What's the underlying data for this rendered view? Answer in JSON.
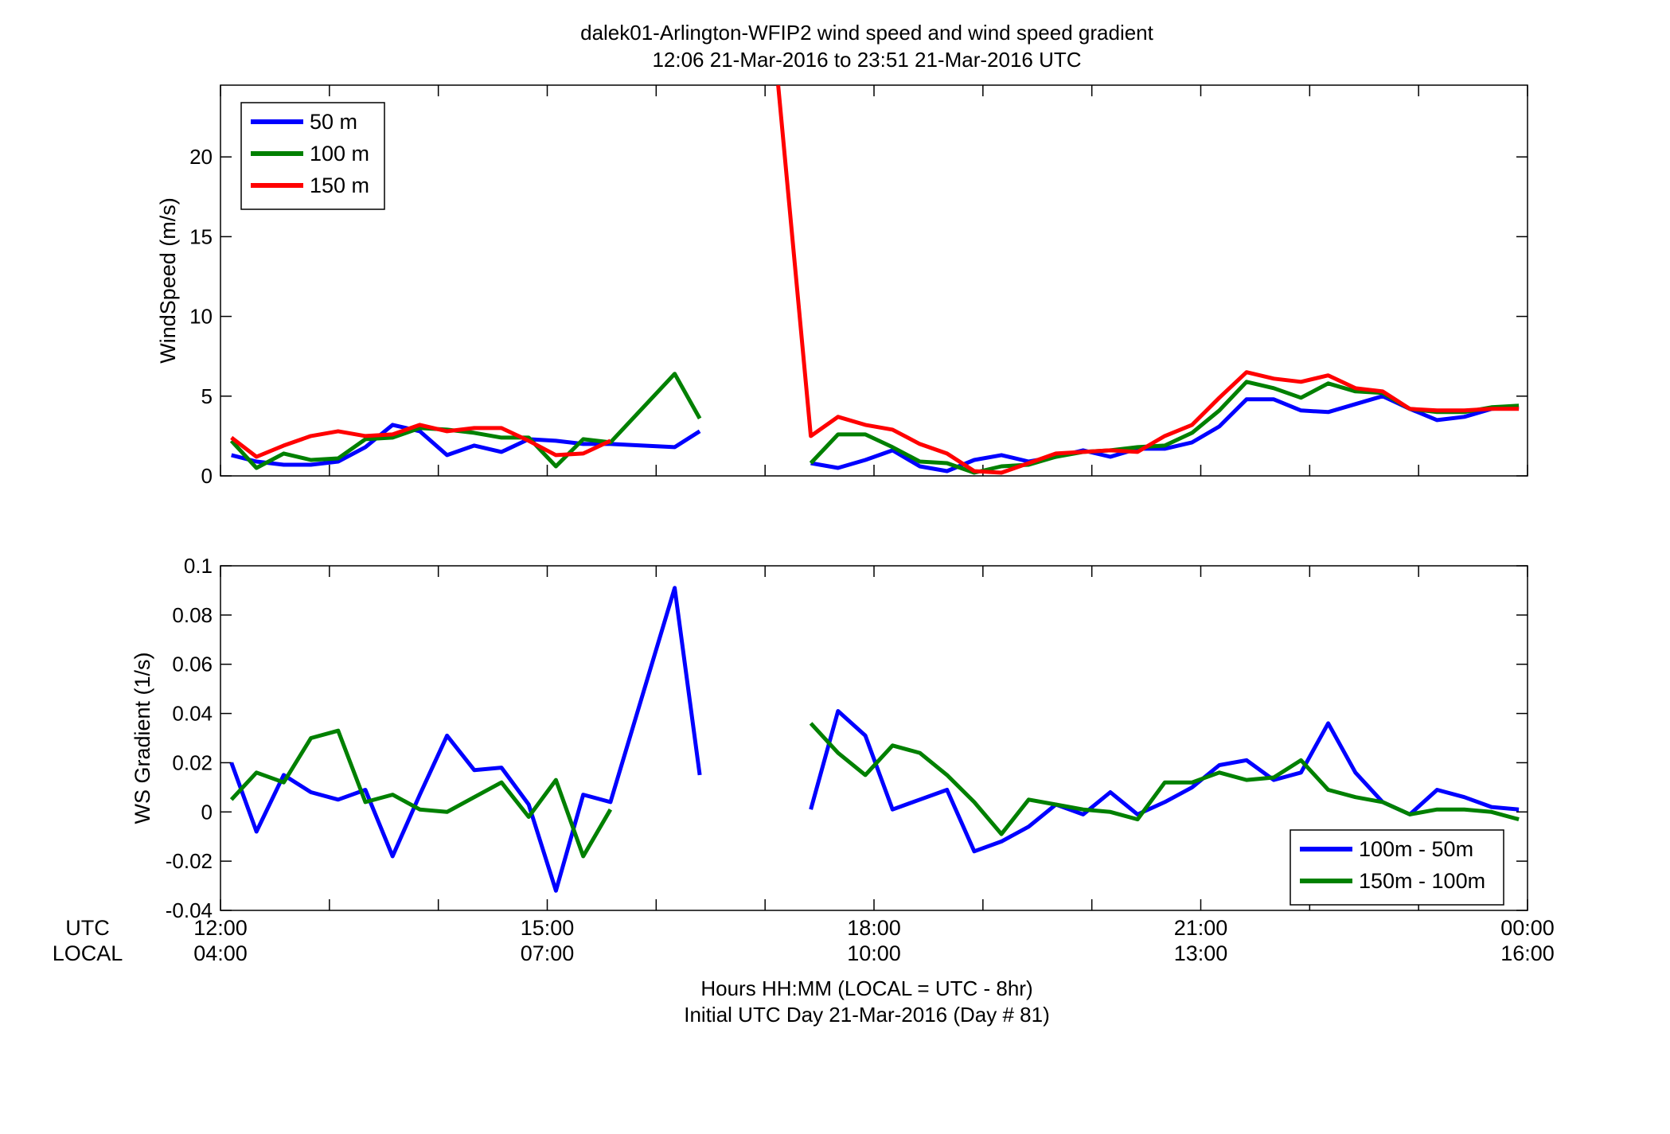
{
  "title": {
    "line1": "dalek01-Arlington-WFIP2  wind speed and wind speed gradient",
    "line2": "12:06 21-Mar-2016 to 23:51 21-Mar-2016  UTC"
  },
  "xaxis": {
    "utc_label": "UTC",
    "local_label": "LOCAL",
    "xlabel_line1": "Hours HH:MM  (LOCAL = UTC - 8hr)",
    "xlabel_line2": "Initial UTC Day 21-Mar-2016 (Day # 81)",
    "ticks": [
      {
        "value": 12,
        "utc": "12:00",
        "local": "04:00"
      },
      {
        "value": 15,
        "utc": "15:00",
        "local": "07:00"
      },
      {
        "value": 18,
        "utc": "18:00",
        "local": "10:00"
      },
      {
        "value": 21,
        "utc": "21:00",
        "local": "13:00"
      },
      {
        "value": 24,
        "utc": "00:00",
        "local": "16:00"
      }
    ],
    "range": [
      12,
      24
    ]
  },
  "chart_data": [
    {
      "type": "line",
      "ylabel": "WindSpeed (m/s)",
      "ylim": [
        0,
        24.5
      ],
      "yticks": [
        0,
        5,
        10,
        15,
        20
      ],
      "ytick_labels": [
        "0",
        "5",
        "10",
        "15",
        "20"
      ],
      "legend_position": "top-left",
      "grid": false,
      "series": [
        {
          "name": "50 m",
          "color": "#0000ff",
          "x": [
            12.1,
            12.33,
            12.58,
            12.83,
            13.08,
            13.33,
            13.58,
            13.83,
            14.08,
            14.33,
            14.58,
            14.83,
            15.08,
            15.33,
            15.58,
            16.17,
            16.4,
            null,
            17.42,
            17.67,
            17.92,
            18.17,
            18.42,
            18.67,
            18.92,
            19.17,
            19.42,
            19.67,
            19.92,
            20.17,
            20.42,
            20.67,
            20.92,
            21.17,
            21.42,
            21.67,
            21.92,
            22.17,
            22.42,
            22.67,
            22.92,
            23.17,
            23.42,
            23.67,
            23.92
          ],
          "y": [
            1.3,
            0.9,
            0.7,
            0.7,
            0.9,
            1.8,
            3.2,
            2.8,
            1.3,
            1.9,
            1.5,
            2.3,
            2.2,
            2.0,
            2.0,
            1.8,
            2.8,
            null,
            0.8,
            0.5,
            1.0,
            1.6,
            0.6,
            0.3,
            1.0,
            1.3,
            0.9,
            1.2,
            1.6,
            1.2,
            1.7,
            1.7,
            2.1,
            3.1,
            4.8,
            4.8,
            4.1,
            4.0,
            4.5,
            5.0,
            4.2,
            3.5,
            3.7,
            4.2,
            4.3
          ]
        },
        {
          "name": "100 m",
          "color": "#008000",
          "x": [
            12.1,
            12.33,
            12.58,
            12.83,
            13.08,
            13.33,
            13.58,
            13.83,
            14.08,
            14.33,
            14.58,
            14.83,
            15.08,
            15.33,
            15.58,
            16.17,
            16.4,
            null,
            17.42,
            17.67,
            17.92,
            18.17,
            18.42,
            18.67,
            18.92,
            19.17,
            19.42,
            19.67,
            19.92,
            20.17,
            20.42,
            20.67,
            20.92,
            21.17,
            21.42,
            21.67,
            21.92,
            22.17,
            22.42,
            22.67,
            22.92,
            23.17,
            23.42,
            23.67,
            23.92
          ],
          "y": [
            2.2,
            0.5,
            1.4,
            1.0,
            1.1,
            2.3,
            2.4,
            3.0,
            2.9,
            2.7,
            2.4,
            2.4,
            0.6,
            2.3,
            2.1,
            6.4,
            3.6,
            null,
            0.8,
            2.6,
            2.6,
            1.8,
            0.9,
            0.8,
            0.2,
            0.6,
            0.7,
            1.2,
            1.5,
            1.6,
            1.8,
            1.9,
            2.7,
            4.1,
            5.9,
            5.5,
            4.9,
            5.8,
            5.3,
            5.2,
            4.2,
            4.0,
            4.0,
            4.3,
            4.4
          ]
        },
        {
          "name": "150 m",
          "color": "#ff0000",
          "x": [
            12.1,
            12.33,
            12.58,
            12.83,
            13.08,
            13.33,
            13.58,
            13.83,
            14.08,
            14.33,
            14.58,
            14.83,
            15.08,
            15.33,
            15.58,
            null,
            17.12,
            17.42,
            17.67,
            17.92,
            18.17,
            18.42,
            18.67,
            18.92,
            19.17,
            19.42,
            19.67,
            19.92,
            20.17,
            20.42,
            20.67,
            20.92,
            21.17,
            21.42,
            21.67,
            21.92,
            22.17,
            22.42,
            22.67,
            22.92,
            23.17,
            23.42,
            23.67,
            23.92
          ],
          "y": [
            2.4,
            1.2,
            1.9,
            2.5,
            2.8,
            2.5,
            2.6,
            3.2,
            2.8,
            3.0,
            3.0,
            2.2,
            1.3,
            1.4,
            2.2,
            null,
            24.5,
            2.5,
            3.7,
            3.2,
            2.9,
            2.0,
            1.4,
            0.3,
            0.2,
            0.8,
            1.4,
            1.5,
            1.6,
            1.5,
            2.5,
            3.2,
            4.9,
            6.5,
            6.1,
            5.9,
            6.3,
            5.5,
            5.3,
            4.2,
            4.1,
            4.1,
            4.2,
            4.2
          ]
        }
      ]
    },
    {
      "type": "line",
      "ylabel": "WS Gradient (1/s)",
      "ylim": [
        -0.04,
        0.1
      ],
      "yticks": [
        -0.04,
        -0.02,
        0,
        0.02,
        0.04,
        0.06,
        0.08,
        0.1
      ],
      "ytick_labels": [
        "-0.04",
        "-0.02",
        "0",
        "0.02",
        "0.04",
        "0.06",
        "0.08",
        "0.1"
      ],
      "legend_position": "bottom-right",
      "grid": false,
      "series": [
        {
          "name": "100m - 50m",
          "color": "#0000ff",
          "x": [
            12.1,
            12.33,
            12.58,
            12.83,
            13.08,
            13.33,
            13.58,
            13.83,
            14.08,
            14.33,
            14.58,
            14.83,
            15.08,
            15.33,
            15.58,
            16.17,
            16.4,
            null,
            17.42,
            17.67,
            17.92,
            18.17,
            18.42,
            18.67,
            18.92,
            19.17,
            19.42,
            19.67,
            19.92,
            20.17,
            20.42,
            20.67,
            20.92,
            21.17,
            21.42,
            21.67,
            21.92,
            22.17,
            22.42,
            22.67,
            22.92,
            23.17,
            23.42,
            23.67,
            23.92
          ],
          "y": [
            0.02,
            -0.008,
            0.015,
            0.008,
            0.005,
            0.009,
            -0.018,
            0.007,
            0.031,
            0.017,
            0.018,
            0.003,
            -0.032,
            0.007,
            0.004,
            0.091,
            0.015,
            null,
            0.001,
            0.041,
            0.031,
            0.001,
            0.005,
            0.009,
            -0.016,
            -0.012,
            -0.006,
            0.003,
            -0.001,
            0.008,
            -0.001,
            0.004,
            0.01,
            0.019,
            0.021,
            0.013,
            0.016,
            0.036,
            0.016,
            0.004,
            -0.001,
            0.009,
            0.006,
            0.002,
            0.001
          ]
        },
        {
          "name": "150m - 100m",
          "color": "#008000",
          "x": [
            12.1,
            12.33,
            12.58,
            12.83,
            13.08,
            13.33,
            13.58,
            13.83,
            14.08,
            14.33,
            14.58,
            14.83,
            15.08,
            15.33,
            15.58,
            null,
            17.42,
            17.67,
            17.92,
            18.17,
            18.42,
            18.67,
            18.92,
            19.17,
            19.42,
            19.67,
            19.92,
            20.17,
            20.42,
            20.67,
            20.92,
            21.17,
            21.42,
            21.67,
            21.92,
            22.17,
            22.42,
            22.67,
            22.92,
            23.17,
            23.42,
            23.67,
            23.92
          ],
          "y": [
            0.005,
            0.016,
            0.012,
            0.03,
            0.033,
            0.004,
            0.007,
            0.001,
            0.0,
            0.006,
            0.012,
            -0.002,
            0.013,
            -0.018,
            0.001,
            null,
            0.036,
            0.024,
            0.015,
            0.027,
            0.024,
            0.015,
            0.004,
            -0.009,
            0.005,
            0.003,
            0.001,
            0.0,
            -0.003,
            0.012,
            0.012,
            0.016,
            0.013,
            0.014,
            0.021,
            0.009,
            0.006,
            0.004,
            -0.001,
            0.001,
            0.001,
            0.0,
            -0.003
          ]
        }
      ]
    }
  ]
}
